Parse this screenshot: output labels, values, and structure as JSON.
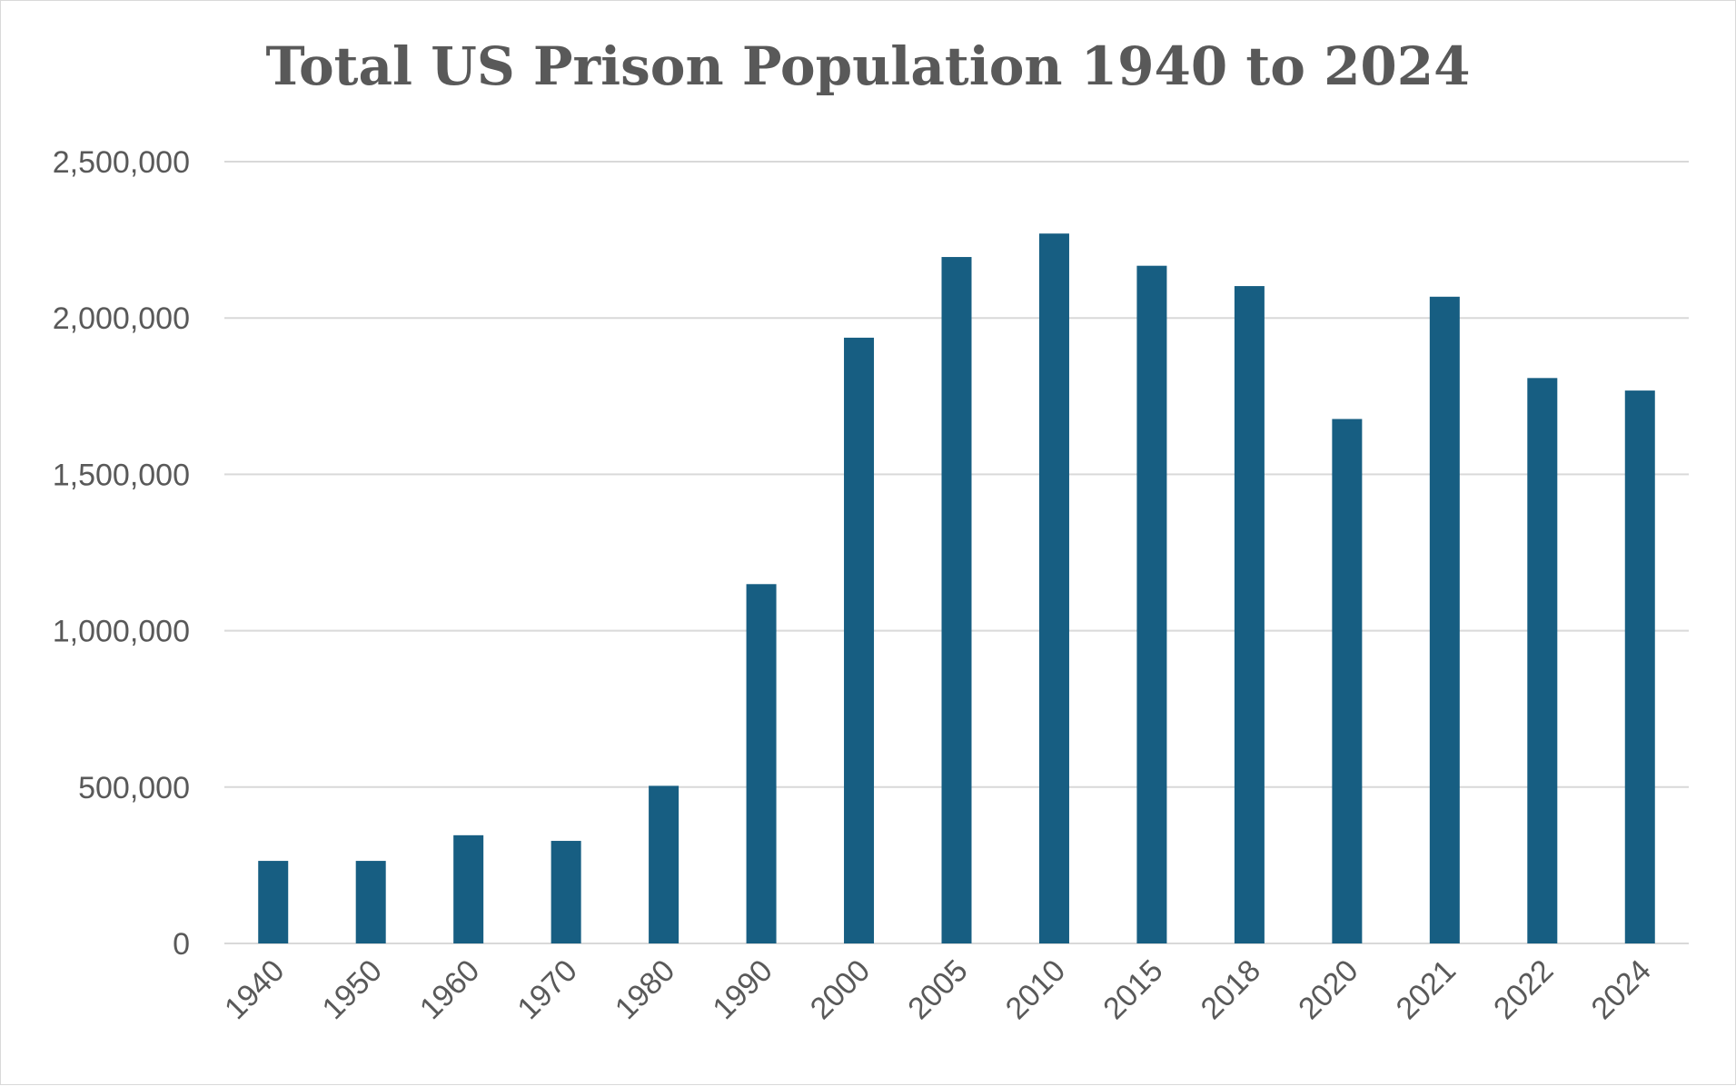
{
  "chart_data": {
    "type": "bar",
    "title": "Total US Prison Population 1940 to 2024",
    "xlabel": "",
    "ylabel": "",
    "categories": [
      "1940",
      "1950",
      "1960",
      "1970",
      "1980",
      "1990",
      "2000",
      "2005",
      "2010",
      "2015",
      "2018",
      "2020",
      "2021",
      "2022",
      "2024"
    ],
    "values": [
      264000,
      264000,
      346000,
      328000,
      504000,
      1149000,
      1937000,
      2195000,
      2270000,
      2167000,
      2102000,
      1677000,
      2068000,
      1808000,
      1768000
    ],
    "ylim": [
      0,
      2500000
    ],
    "yticks": [
      "0",
      "500,000",
      "1,000,000",
      "1,500,000",
      "2,000,000",
      "2,500,000"
    ],
    "ytick_values": [
      0,
      500000,
      1000000,
      1500000,
      2000000,
      2500000
    ],
    "grid": true,
    "legend": "none",
    "bar_color": "#175e82",
    "grid_color": "#d9d9d9"
  }
}
